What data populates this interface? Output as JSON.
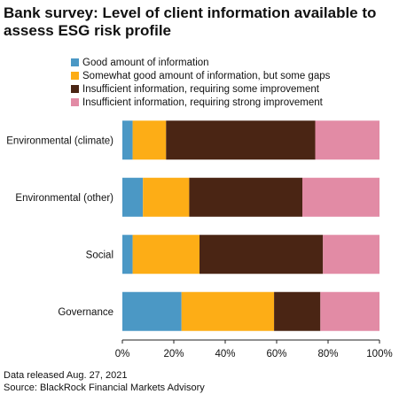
{
  "chart_data": {
    "type": "bar",
    "orientation": "horizontal",
    "stacked": true,
    "title": "Bank survey: Level of client information available to assess ESG risk profile",
    "categories": [
      "Environmental (climate)",
      "Environmental (other)",
      "Social",
      "Governance"
    ],
    "series": [
      {
        "name": "Good amount of information",
        "color": "#4b98c5",
        "values": [
          4,
          8,
          4,
          23
        ]
      },
      {
        "name": "Somewhat good amount of information, but some gaps",
        "color": "#fdad16",
        "values": [
          13,
          18,
          26,
          36
        ]
      },
      {
        "name": "Insufficient information, requiring some improvement",
        "color": "#4a2514",
        "values": [
          58,
          44,
          48,
          18
        ]
      },
      {
        "name": "Insufficient information, requiring strong improvement",
        "color": "#e28ba5",
        "values": [
          25,
          30,
          22,
          23
        ]
      }
    ],
    "xlim": [
      0,
      100
    ],
    "x_ticks": [
      "0%",
      "20%",
      "40%",
      "60%",
      "80%",
      "100%"
    ],
    "x_tick_values": [
      0,
      20,
      40,
      60,
      80,
      100
    ],
    "legend": "top",
    "grid": false
  },
  "footnotes": {
    "released": "Data released Aug. 27, 2021",
    "source": "Source: BlackRock Financial Markets Advisory"
  }
}
